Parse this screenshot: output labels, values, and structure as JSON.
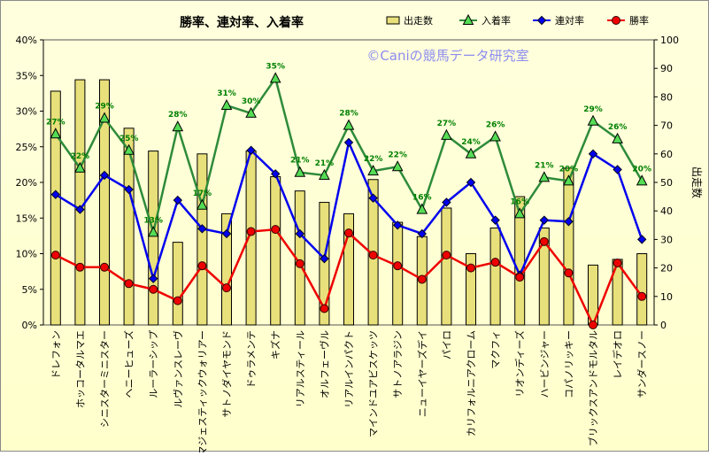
{
  "chart_data": {
    "type": "bar",
    "title": "勝率、連対率、入着率",
    "watermark": "©Caniの競馬データ研究室",
    "ylabel_right": "出走数",
    "left_axis": {
      "ylim": [
        0,
        40
      ],
      "ticks": [
        "0%",
        "5%",
        "10%",
        "15%",
        "20%",
        "25%",
        "30%",
        "35%",
        "40%"
      ]
    },
    "right_axis": {
      "ylim": [
        0,
        100
      ],
      "ticks": [
        "0",
        "10",
        "20",
        "30",
        "40",
        "50",
        "60",
        "70",
        "80",
        "90",
        "100"
      ]
    },
    "grid": false,
    "legend_position": "top",
    "categories": [
      "ドレフォン",
      "ホッコータルマエ",
      "シニスターミニスター",
      "ヘニーヒューズ",
      "ルーラーシップ",
      "ルヴァンスレーヴ",
      "マジェスティックウォリアー",
      "サトノダイヤモンド",
      "ドゥラメンテ",
      "キズナ",
      "リアルスティール",
      "オルフェーヴル",
      "リアルインパクト",
      "マインドユアビスケッツ",
      "サトノアラジン",
      "ニューイヤーズデイ",
      "パイロ",
      "カリフォルニアクローム",
      "マクフィ",
      "リオンディーズ",
      "ハービンジャー",
      "コパノリッキー",
      "ブリックスアンドモルタル",
      "レイデオロ",
      "サンダースノー"
    ],
    "series": [
      {
        "name": "出走数",
        "type": "bar",
        "axis": "right",
        "color": "#e8e07a",
        "values": [
          82,
          86,
          86,
          69,
          61,
          29,
          60,
          39,
          61,
          52,
          47,
          43,
          39,
          51,
          36,
          31,
          41,
          25,
          34,
          45,
          34,
          55,
          21,
          23,
          25
        ]
      },
      {
        "name": "入着率",
        "type": "line",
        "axis": "left",
        "color": "#2e8b3a",
        "marker": "triangle",
        "label_color": "#008000",
        "values": [
          26.8,
          22.0,
          29.0,
          24.5,
          13.0,
          27.8,
          16.8,
          30.8,
          29.7,
          34.6,
          21.4,
          21.0,
          28.0,
          21.6,
          22.2,
          16.2,
          26.6,
          24.0,
          26.4,
          15.6,
          20.7,
          20.2,
          28.6,
          26.1,
          20.2
        ],
        "labels": [
          "27%",
          "22%",
          "29%",
          "25%",
          "13%",
          "28%",
          "17%",
          "31%",
          "30%",
          "35%",
          "21%",
          "21%",
          "28%",
          "22%",
          "22%",
          "16%",
          "27%",
          "24%",
          "26%",
          "16%",
          "21%",
          "20%",
          "29%",
          "26%",
          "20%"
        ]
      },
      {
        "name": "連対率",
        "type": "line",
        "axis": "left",
        "color": "#0000ee",
        "marker": "diamond",
        "values": [
          18.3,
          16.2,
          21.0,
          19.0,
          6.5,
          17.5,
          13.5,
          12.8,
          24.5,
          21.2,
          12.8,
          9.3,
          25.6,
          17.8,
          14.0,
          12.8,
          17.2,
          20.0,
          14.7,
          7.0,
          14.7,
          14.5,
          24.0,
          21.8,
          12.0
        ]
      },
      {
        "name": "勝率",
        "type": "line",
        "axis": "left",
        "color": "#ee0000",
        "marker": "circle",
        "values": [
          9.8,
          8.1,
          8.1,
          5.8,
          5.0,
          3.4,
          8.3,
          5.2,
          13.1,
          13.4,
          8.6,
          2.3,
          12.9,
          9.8,
          8.3,
          6.4,
          9.8,
          8.0,
          8.8,
          6.7,
          11.7,
          7.3,
          0.0,
          8.7,
          4.0
        ]
      }
    ]
  }
}
